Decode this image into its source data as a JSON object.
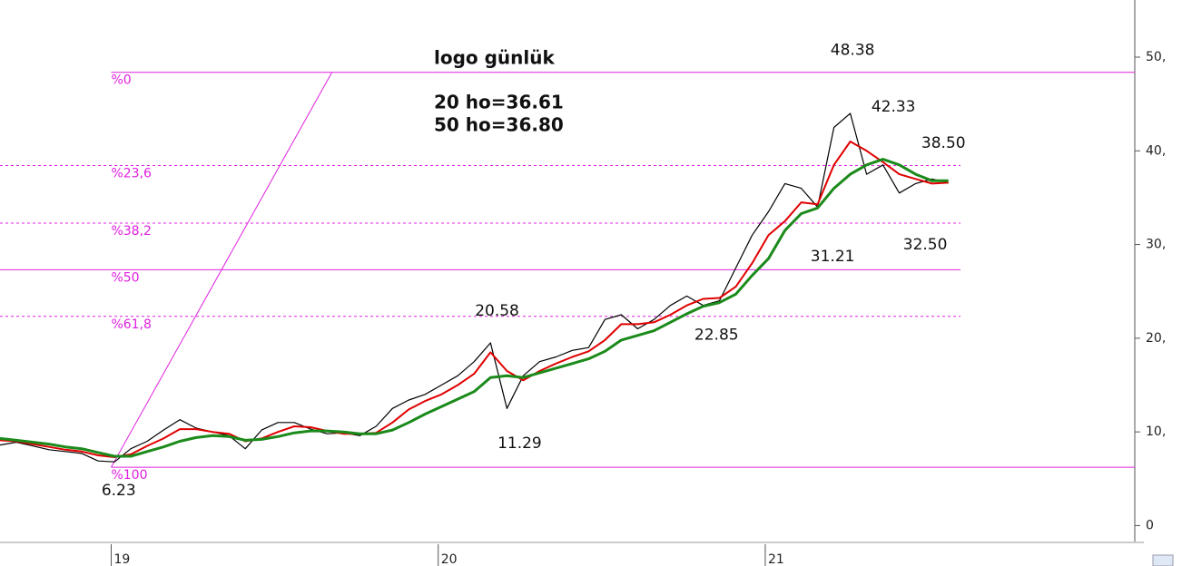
{
  "chart_data": {
    "type": "line",
    "title": "logo günlük",
    "xlim": [
      2018.66,
      2022.13
    ],
    "xticks": [
      {
        "value": 2019,
        "label": "19"
      },
      {
        "value": 2020,
        "label": "20"
      },
      {
        "value": 2021,
        "label": "21"
      }
    ],
    "ylim": [
      -1.7,
      56.1
    ],
    "yticks": [
      0,
      {
        "value": 10,
        "label": "10,"
      },
      {
        "value": 20,
        "label": "20,"
      },
      {
        "value": 30,
        "label": "30,"
      },
      {
        "value": 40,
        "label": "40,"
      },
      {
        "value": 50,
        "label": "50,"
      }
    ],
    "x": [
      2018.66,
      2018.71,
      2018.76,
      2018.81,
      2018.86,
      2018.91,
      2018.96,
      2019.01,
      2019.06,
      2019.11,
      2019.16,
      2019.21,
      2019.26,
      2019.31,
      2019.36,
      2019.41,
      2019.46,
      2019.51,
      2019.56,
      2019.61,
      2019.66,
      2019.71,
      2019.76,
      2019.81,
      2019.86,
      2019.91,
      2019.96,
      2020.01,
      2020.06,
      2020.11,
      2020.16,
      2020.21,
      2020.26,
      2020.31,
      2020.36,
      2020.41,
      2020.46,
      2020.51,
      2020.56,
      2020.61,
      2020.66,
      2020.71,
      2020.76,
      2020.81,
      2020.86,
      2020.91,
      2020.96,
      2021.01,
      2021.06,
      2021.11,
      2021.16,
      2021.21,
      2021.26,
      2021.31,
      2021.36,
      2021.41,
      2021.46,
      2021.51,
      2021.56
    ],
    "series": [
      {
        "color": "#000000",
        "values": [
          8.6,
          8.9,
          8.5,
          8.1,
          7.9,
          7.7,
          6.9,
          6.8,
          8.2,
          9.0,
          10.2,
          11.3,
          10.4,
          10.0,
          9.6,
          8.2,
          10.2,
          11.0,
          11.0,
          10.3,
          9.8,
          9.9,
          9.6,
          10.6,
          12.5,
          13.4,
          14.0,
          15.0,
          16.0,
          17.5,
          19.5,
          12.5,
          16.0,
          17.5,
          18.0,
          18.7,
          19.0,
          22.0,
          22.5,
          21.0,
          22.0,
          23.5,
          24.5,
          23.5,
          24.0,
          27.5,
          31.0,
          33.5,
          36.5,
          36.0,
          34.0,
          42.5,
          44.0,
          37.5,
          38.5,
          35.5,
          36.5,
          37.0,
          36.6
        ]
      },
      {
        "name": "20 ho=36.61",
        "color": "#e00000",
        "values": [
          9.1,
          9.0,
          8.7,
          8.4,
          8.1,
          7.9,
          7.5,
          7.3,
          7.6,
          8.5,
          9.3,
          10.3,
          10.3,
          10.0,
          9.8,
          9.0,
          9.3,
          10.0,
          10.6,
          10.5,
          10.1,
          9.8,
          9.8,
          9.9,
          11.0,
          12.4,
          13.3,
          14.0,
          15.0,
          16.2,
          18.5,
          16.5,
          15.5,
          16.5,
          17.3,
          18.0,
          18.6,
          19.8,
          21.5,
          21.5,
          21.7,
          22.5,
          23.5,
          24.2,
          24.3,
          25.5,
          28.0,
          31.0,
          32.5,
          34.5,
          34.3,
          38.5,
          41.0,
          40.0,
          38.8,
          37.5,
          37.0,
          36.5,
          36.6
        ]
      },
      {
        "name": "50 ho=36.80",
        "color": "#1a8a1a",
        "values": [
          9.3,
          9.1,
          8.9,
          8.7,
          8.4,
          8.2,
          7.8,
          7.4,
          7.4,
          7.9,
          8.4,
          9.0,
          9.4,
          9.6,
          9.5,
          9.1,
          9.2,
          9.5,
          9.9,
          10.1,
          10.1,
          10.0,
          9.8,
          9.8,
          10.2,
          11.0,
          11.9,
          12.7,
          13.5,
          14.3,
          15.8,
          16.0,
          15.8,
          16.3,
          16.8,
          17.3,
          17.8,
          18.6,
          19.8,
          20.3,
          20.8,
          21.7,
          22.6,
          23.4,
          23.8,
          24.7,
          26.7,
          28.5,
          31.5,
          33.3,
          33.9,
          36.0,
          37.5,
          38.5,
          39.1,
          38.5,
          37.5,
          36.8,
          36.8
        ]
      }
    ],
    "fib_levels": [
      {
        "label": "%0",
        "value": 48.38,
        "dashed": false
      },
      {
        "label": "%23,6",
        "value": 38.43,
        "dashed": true
      },
      {
        "label": "%38,2",
        "value": 32.28,
        "dashed": true
      },
      {
        "label": "%50",
        "value": 27.31,
        "dashed": false
      },
      {
        "label": "%61,8",
        "value": 22.33,
        "dashed": true
      },
      {
        "label": "%100",
        "value": 6.23,
        "dashed": false
      }
    ],
    "fib_color": "#e020e0",
    "trendline": {
      "x": [
        2019.0,
        2019.675
      ],
      "values": [
        6.23,
        48.38
      ]
    },
    "annotations": [
      {
        "label": "48.38",
        "x": 2021.267,
        "value": 48.38,
        "position": "above"
      },
      {
        "label": "42.33",
        "x": 2021.392,
        "value": 42.33,
        "position": "above"
      },
      {
        "label": "38.50",
        "x": 2021.545,
        "value": 38.5,
        "position": "above"
      },
      {
        "label": "31.21",
        "x": 2021.206,
        "value": 31.21,
        "position": "below"
      },
      {
        "label": "32.50",
        "x": 2021.489,
        "value": 32.5,
        "position": "below"
      },
      {
        "label": "22.85",
        "x": 2020.851,
        "value": 22.85,
        "position": "below"
      },
      {
        "label": "20.58",
        "x": 2020.18,
        "value": 20.58,
        "position": "above"
      },
      {
        "label": "11.29",
        "x": 2020.249,
        "value": 11.29,
        "position": "below"
      },
      {
        "label": "6.23",
        "x": 2019.023,
        "value": 6.23,
        "position": "below"
      }
    ]
  }
}
